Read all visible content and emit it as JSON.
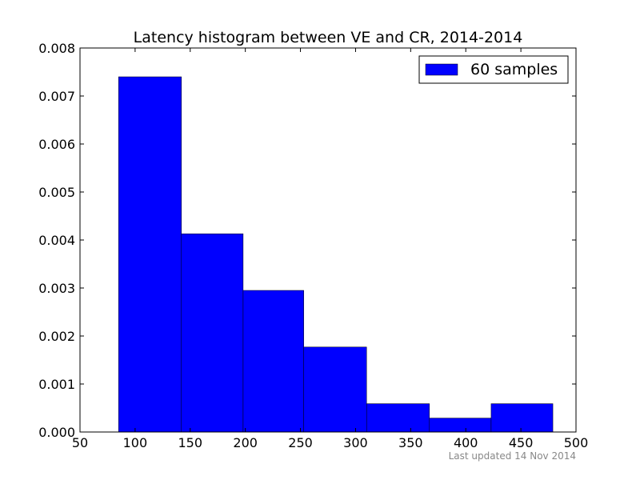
{
  "chart_data": {
    "type": "bar",
    "title": "Latency histogram between VE and CR, 2014-2014",
    "xlabel": "",
    "ylabel": "",
    "xlim": [
      50,
      500
    ],
    "ylim": [
      0,
      0.008
    ],
    "xticks": [
      "50",
      "100",
      "150",
      "200",
      "250",
      "300",
      "350",
      "400",
      "450",
      "500"
    ],
    "yticks": [
      "0.000",
      "0.001",
      "0.002",
      "0.003",
      "0.004",
      "0.005",
      "0.006",
      "0.007",
      "0.008"
    ],
    "bins": [
      {
        "x0": 85,
        "x1": 142,
        "density": 0.0074
      },
      {
        "x0": 142,
        "x1": 198,
        "density": 0.00413
      },
      {
        "x0": 198,
        "x1": 253,
        "density": 0.00295
      },
      {
        "x0": 253,
        "x1": 310,
        "density": 0.00177
      },
      {
        "x0": 310,
        "x1": 367,
        "density": 0.00059
      },
      {
        "x0": 367,
        "x1": 423,
        "density": 0.00029
      },
      {
        "x0": 423,
        "x1": 479,
        "density": 0.00059
      }
    ],
    "series": [
      {
        "name": "60 samples",
        "color": "#0000ff"
      }
    ],
    "legend_position": "top-right",
    "grid": false
  },
  "footnote": "Last updated 14 Nov 2014"
}
